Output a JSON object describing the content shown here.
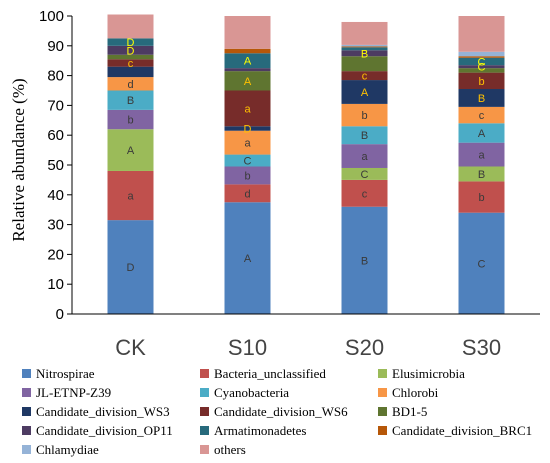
{
  "chart_data": {
    "type": "bar",
    "stacked": true,
    "title": "",
    "xlabel": "",
    "ylabel": "Relative abundance (%)",
    "ylim": [
      0,
      100
    ],
    "yticks": [
      "0",
      "10",
      "20",
      "30",
      "40",
      "50",
      "60",
      "70",
      "80",
      "90",
      "100"
    ],
    "categories": [
      "CK",
      "S10",
      "S20",
      "S30"
    ],
    "legend_position": "bottom",
    "series": [
      {
        "name": "Nitrospirae",
        "color": "#4f81bd",
        "values": [
          31.5,
          37.5,
          36,
          34
        ],
        "labels": [
          "D",
          "A",
          "B",
          "C"
        ]
      },
      {
        "name": "Bacteria_unclassified",
        "color": "#c0504d",
        "values": [
          16.5,
          6,
          9,
          10.5
        ],
        "labels": [
          "a",
          "d",
          "c",
          "b"
        ]
      },
      {
        "name": "Elusimicrobia",
        "color": "#9bbb59",
        "values": [
          14,
          0,
          4,
          5
        ],
        "labels": [
          "A",
          "",
          "C",
          "B"
        ]
      },
      {
        "name": "JL-ETNP-Z39",
        "color": "#8064a2",
        "values": [
          6.5,
          6,
          8,
          8
        ],
        "labels": [
          "b",
          "b",
          "a",
          "a"
        ]
      },
      {
        "name": "Cyanobacteria",
        "color": "#4bacc6",
        "values": [
          6.5,
          4,
          6,
          6.5
        ],
        "labels": [
          "B",
          "C",
          "B",
          "A"
        ]
      },
      {
        "name": "Chlorobi",
        "color": "#f79646",
        "values": [
          4.5,
          8,
          7.5,
          5.5
        ],
        "labels": [
          "d",
          "a",
          "b",
          "c"
        ]
      },
      {
        "name": "Candidate_division_WS3",
        "color": "#1f3864",
        "values": [
          3.5,
          1.5,
          8,
          6
        ],
        "labels": [
          "",
          "D",
          "A",
          "B"
        ]
      },
      {
        "name": "Candidate_division_WS6",
        "color": "#772c2a",
        "values": [
          2.5,
          12,
          3,
          5.5
        ],
        "labels": [
          "c",
          "a",
          "c",
          "b"
        ]
      },
      {
        "name": "BD1-5",
        "color": "#5f7530",
        "values": [
          1.5,
          6.5,
          5,
          1.5
        ],
        "labels": [
          "",
          "A",
          "",
          ""
        ]
      },
      {
        "name": "Candidate_division_OP11",
        "color": "#4d3b62",
        "values": [
          3,
          1,
          2,
          1
        ],
        "labels": [
          "D",
          "",
          "B",
          "C"
        ]
      },
      {
        "name": "Armatimonadetes",
        "color": "#276a7c",
        "values": [
          2.5,
          5,
          1,
          2.5
        ],
        "labels": [
          "D",
          "A",
          "",
          "C"
        ]
      },
      {
        "name": "Candidate_division_BRC1",
        "color": "#b65708",
        "values": [
          0,
          1.5,
          0.3,
          0.5
        ],
        "labels": [
          "",
          "",
          "",
          ""
        ]
      },
      {
        "name": "Chlamydiae",
        "color": "#95b3d7",
        "values": [
          0,
          0,
          0.5,
          1.5
        ],
        "labels": [
          "",
          "",
          "",
          ""
        ]
      },
      {
        "name": "others",
        "color": "#d99694",
        "values": [
          8,
          11,
          7.7,
          12
        ],
        "labels": [
          "",
          "",
          "",
          ""
        ]
      }
    ]
  },
  "label_colors": {
    "uppercase_on_light": "#3a3a3a",
    "highlight": "#ffff00",
    "orange_highlight": "#ffc000"
  }
}
